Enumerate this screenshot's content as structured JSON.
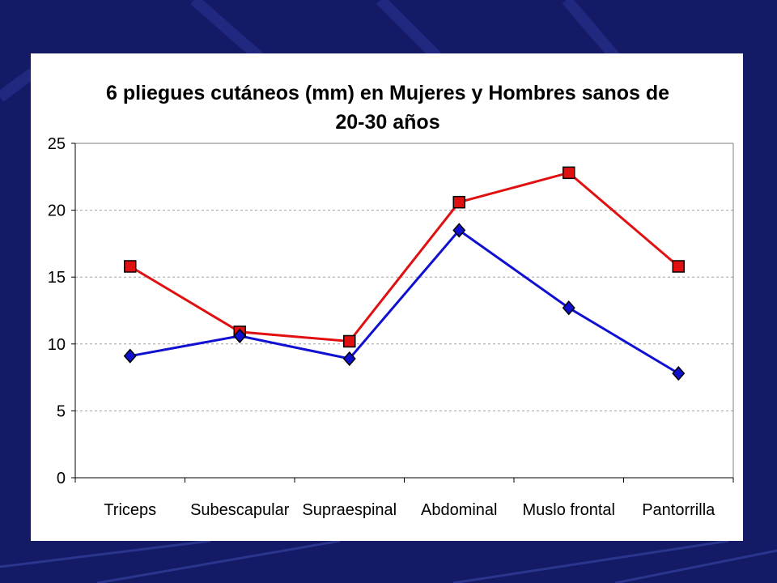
{
  "colors": {
    "slide_background": "#141a66",
    "plot_background": "#ffffff",
    "gridline": "#a0a0a0",
    "series_red": "#e01010",
    "series_blue": "#1010d0"
  },
  "chart_data": {
    "type": "line",
    "title": "6 pliegues cutáneos (mm) en Mujeres y Hombres sanos de",
    "title_line2": "20-30 años",
    "xlabel": "",
    "ylabel": "",
    "categories": [
      "Triceps",
      "Subescapular",
      "Supraespinal",
      "Abdominal",
      "Muslo frontal",
      "Pantorrilla"
    ],
    "ylim": [
      0,
      25
    ],
    "yticks": [
      "0",
      "5",
      "10",
      "15",
      "20",
      "25"
    ],
    "grid": "horizontal dashed",
    "legend": "none",
    "series": [
      {
        "color": "#e01010",
        "marker": "square",
        "values": [
          15.8,
          10.9,
          10.2,
          20.6,
          22.8,
          15.8
        ]
      },
      {
        "color": "#1010d0",
        "marker": "diamond",
        "values": [
          9.1,
          10.6,
          8.9,
          18.5,
          12.7,
          7.8
        ]
      }
    ]
  }
}
